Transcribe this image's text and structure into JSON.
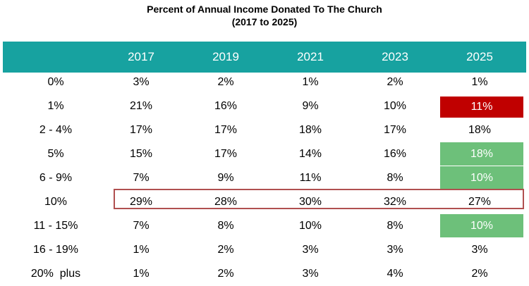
{
  "title_line1": "Percent of Annual Income Donated To The Church",
  "title_line2": "(2017 to 2025)",
  "highlight_colors": {
    "red": "#c00000",
    "green": "#6dc07a",
    "header": "#17a2a0",
    "outline": "#b05050"
  },
  "chart_data": {
    "type": "table",
    "title": "Percent of Annual Income Donated To The Church",
    "subtitle": "(2017 to 2025)",
    "columns": [
      "2017",
      "2019",
      "2021",
      "2023",
      "2025"
    ],
    "rows": [
      {
        "label": "0%",
        "values": [
          "3%",
          "2%",
          "1%",
          "2%",
          "1%"
        ]
      },
      {
        "label": "1%",
        "values": [
          "21%",
          "16%",
          "9%",
          "10%",
          "11%"
        ],
        "highlight_2025": "red"
      },
      {
        "label": "2 - 4%",
        "values": [
          "17%",
          "17%",
          "18%",
          "17%",
          "18%"
        ]
      },
      {
        "label": "5%",
        "values": [
          "15%",
          "17%",
          "14%",
          "16%",
          "18%"
        ],
        "highlight_2025": "green"
      },
      {
        "label": "6 - 9%",
        "values": [
          "7%",
          "9%",
          "11%",
          "8%",
          "10%"
        ],
        "highlight_2025": "green"
      },
      {
        "label": "10%",
        "values": [
          "29%",
          "28%",
          "30%",
          "32%",
          "27%"
        ],
        "outlined": true
      },
      {
        "label": "11 - 15%",
        "values": [
          "7%",
          "8%",
          "10%",
          "8%",
          "10%"
        ],
        "highlight_2025": "green"
      },
      {
        "label": "16 - 19%",
        "values": [
          "1%",
          "2%",
          "3%",
          "3%",
          "3%"
        ]
      },
      {
        "label": "20%  plus",
        "values": [
          "1%",
          "2%",
          "3%",
          "4%",
          "2%"
        ]
      }
    ]
  }
}
